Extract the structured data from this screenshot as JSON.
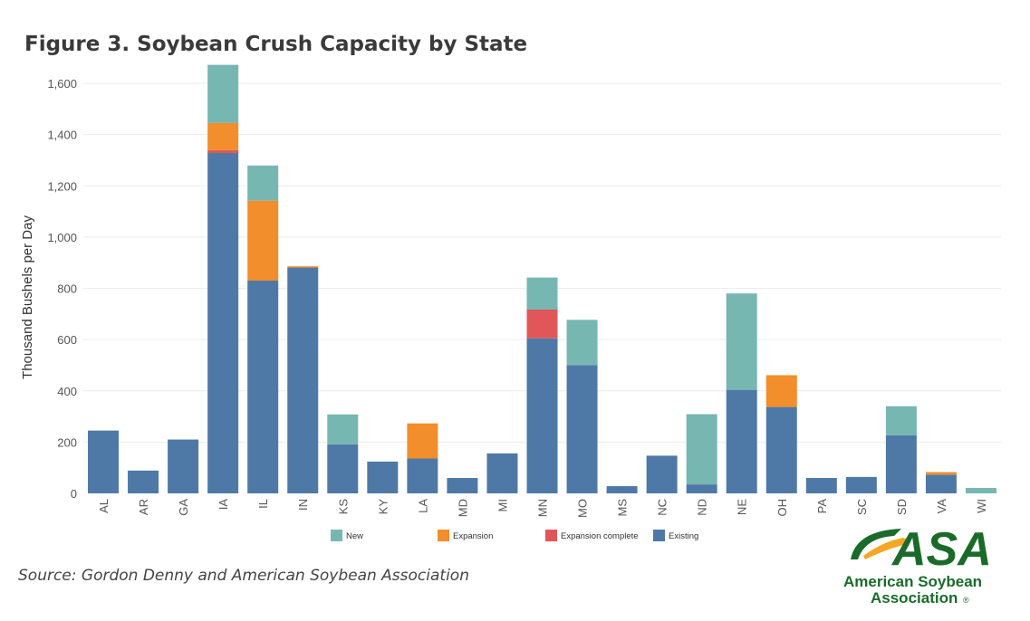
{
  "title": "Figure 3. Soybean Crush Capacity by State",
  "source": "Source: Gordon Denny and American Soybean Association",
  "logo": {
    "text": "ASA",
    "line1": "American Soybean",
    "line2": "Association",
    "mark": "®",
    "color": "#1a6b2a",
    "accent": "#f5a623"
  },
  "chart_data": {
    "type": "bar",
    "stacked": true,
    "title": "Figure 3. Soybean Crush Capacity by State",
    "xlabel": "",
    "ylabel": "Thousand Bushels per Day",
    "ylim": [
      0,
      1680
    ],
    "yticks": [
      0,
      200,
      400,
      600,
      800,
      1000,
      1200,
      1400,
      1600
    ],
    "ytick_labels": [
      "0",
      "200",
      "400",
      "600",
      "800",
      "1,000",
      "1,200",
      "1,400",
      "1,600"
    ],
    "grid": true,
    "legend_position": "bottom",
    "categories": [
      "AL",
      "AR",
      "GA",
      "IA",
      "IL",
      "IN",
      "KS",
      "KY",
      "LA",
      "MD",
      "MI",
      "MN",
      "MO",
      "MS",
      "NC",
      "ND",
      "NE",
      "OH",
      "PA",
      "SC",
      "SD",
      "VA",
      "WI"
    ],
    "series": [
      {
        "name": "Existing",
        "color": "#4E79A7",
        "values": [
          245,
          89,
          210,
          1328,
          830,
          881,
          191,
          124,
          136,
          60,
          156,
          605,
          500,
          28,
          147,
          35,
          404,
          337,
          60,
          64,
          227,
          73,
          0
        ]
      },
      {
        "name": "Expansion complete",
        "color": "#E15759",
        "values": [
          0,
          0,
          0,
          11,
          0,
          0,
          0,
          0,
          0,
          0,
          0,
          112,
          0,
          0,
          0,
          0,
          0,
          0,
          0,
          0,
          0,
          0,
          0
        ]
      },
      {
        "name": "Expansion",
        "color": "#F28E2B",
        "values": [
          0,
          0,
          0,
          106,
          312,
          5,
          0,
          0,
          137,
          0,
          0,
          0,
          0,
          0,
          0,
          0,
          0,
          124,
          0,
          0,
          0,
          10,
          0
        ]
      },
      {
        "name": "New",
        "color": "#76B7B2",
        "values": [
          0,
          0,
          0,
          227,
          137,
          0,
          117,
          0,
          0,
          0,
          0,
          125,
          177,
          0,
          0,
          274,
          376,
          0,
          0,
          0,
          113,
          0,
          21
        ]
      }
    ],
    "legend_order": [
      "New",
      "Expansion",
      "Expansion complete",
      "Existing"
    ]
  }
}
